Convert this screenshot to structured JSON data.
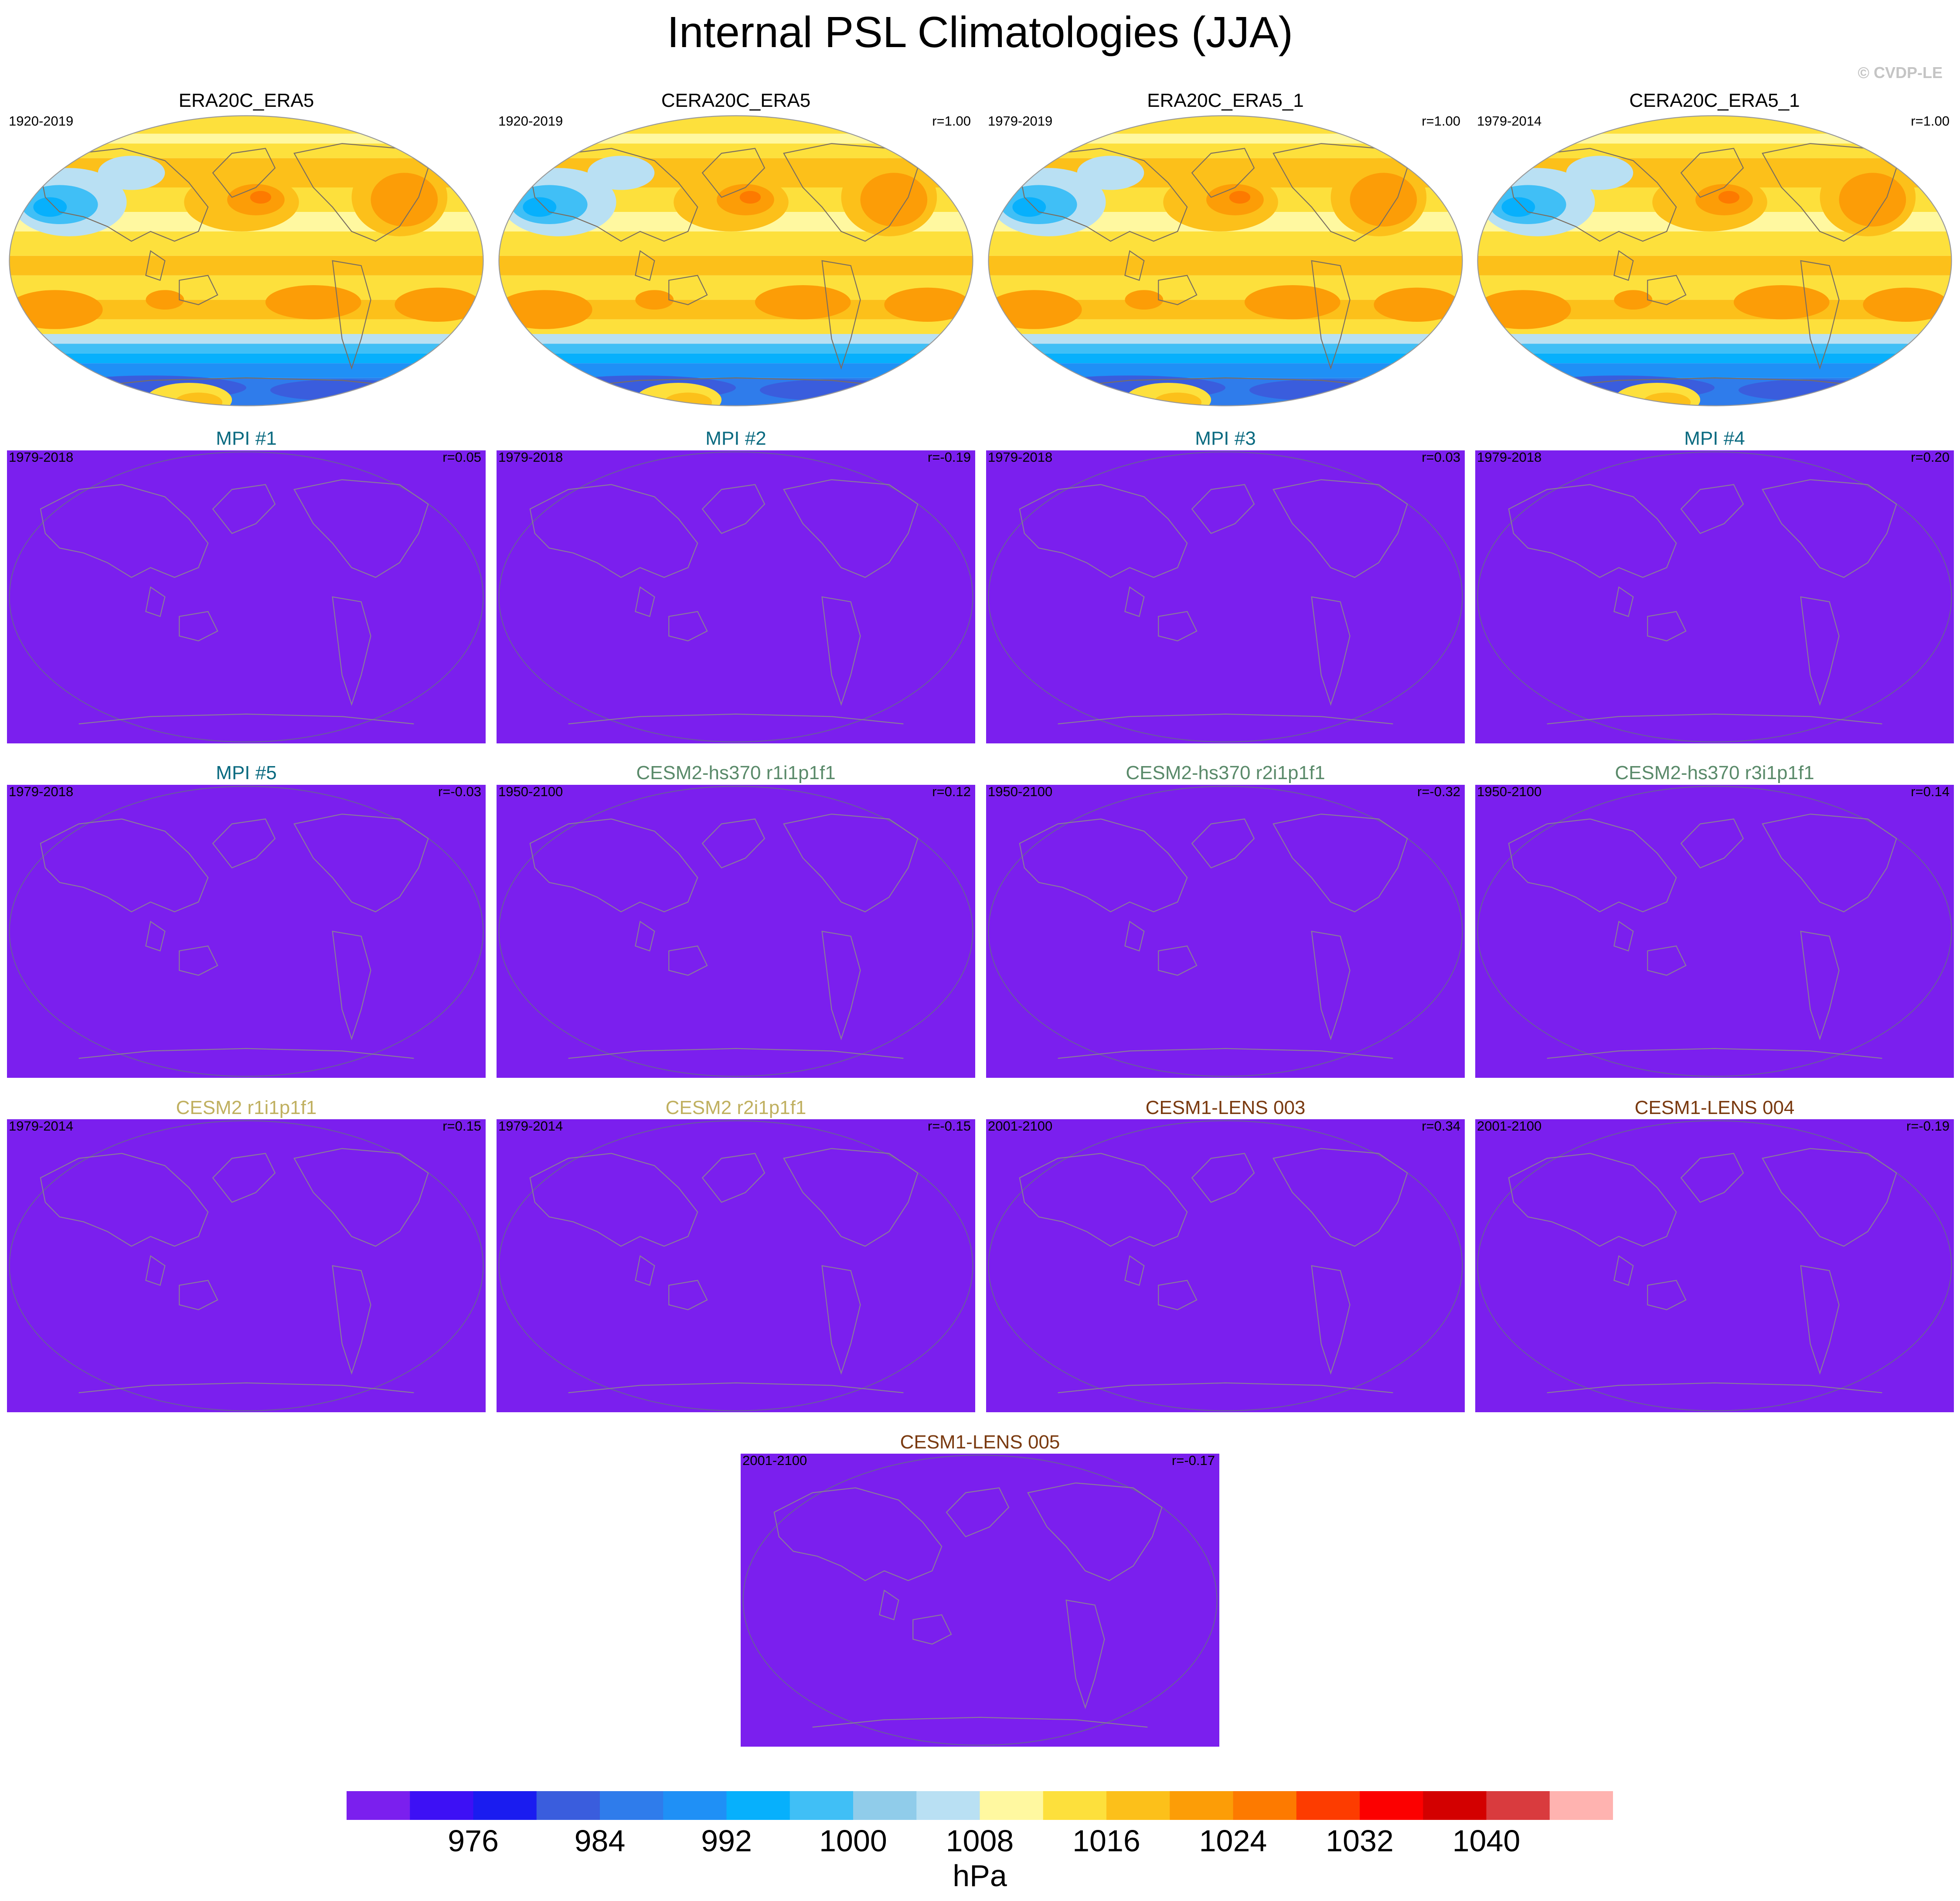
{
  "figure": {
    "title": "Internal PSL Climatologies (JJA)",
    "copyright": "© CVDP-LE"
  },
  "colors": {
    "obs_title": "#000000",
    "mpi_title": "#0a6a80",
    "cesm2_hs370_title": "#5a8a6a",
    "cesm2_title": "#c0b060",
    "cesm1_lens_title": "#7a3a10",
    "model_fill": "#7b1fee",
    "coast": "#8a7a9a"
  },
  "colorbar": {
    "colors": [
      "#7b1fee",
      "#3d10f5",
      "#1a1cf0",
      "#3a5ddd",
      "#2f7ceb",
      "#1f90f6",
      "#07b0fc",
      "#40bff6",
      "#90ccea",
      "#b9e0f3",
      "#fff8a0",
      "#fde03c",
      "#fcc01a",
      "#fc9d07",
      "#fd7a00",
      "#fd3c00",
      "#fc0000",
      "#d30000",
      "#d93b3e",
      "#ffb3b0"
    ],
    "tick_labels": [
      "976",
      "984",
      "992",
      "1000",
      "1008",
      "1016",
      "1024",
      "1032",
      "1040"
    ],
    "unit": "hPa"
  },
  "panels": [
    {
      "title": "ERA20C_ERA5",
      "color_key": "obs_title",
      "period": "1920-2019",
      "r": "",
      "kind": "obs"
    },
    {
      "title": "CERA20C_ERA5",
      "color_key": "obs_title",
      "period": "1920-2019",
      "r": "r=1.00",
      "kind": "obs"
    },
    {
      "title": "ERA20C_ERA5_1",
      "color_key": "obs_title",
      "period": "1979-2019",
      "r": "r=1.00",
      "kind": "obs"
    },
    {
      "title": "CERA20C_ERA5_1",
      "color_key": "obs_title",
      "period": "1979-2014",
      "r": "r=1.00",
      "kind": "obs"
    },
    {
      "title": "MPI #1",
      "color_key": "mpi_title",
      "period": "1979-2018",
      "r": "r=0.05",
      "kind": "model"
    },
    {
      "title": "MPI #2",
      "color_key": "mpi_title",
      "period": "1979-2018",
      "r": "r=-0.19",
      "kind": "model"
    },
    {
      "title": "MPI #3",
      "color_key": "mpi_title",
      "period": "1979-2018",
      "r": "r=0.03",
      "kind": "model"
    },
    {
      "title": "MPI #4",
      "color_key": "mpi_title",
      "period": "1979-2018",
      "r": "r=0.20",
      "kind": "model"
    },
    {
      "title": "MPI #5",
      "color_key": "mpi_title",
      "period": "1979-2018",
      "r": "r=-0.03",
      "kind": "model"
    },
    {
      "title": "CESM2-hs370 r1i1p1f1",
      "color_key": "cesm2_hs370_title",
      "period": "1950-2100",
      "r": "r=0.12",
      "kind": "model"
    },
    {
      "title": "CESM2-hs370 r2i1p1f1",
      "color_key": "cesm2_hs370_title",
      "period": "1950-2100",
      "r": "r=-0.32",
      "kind": "model"
    },
    {
      "title": "CESM2-hs370 r3i1p1f1",
      "color_key": "cesm2_hs370_title",
      "period": "1950-2100",
      "r": "r=0.14",
      "kind": "model"
    },
    {
      "title": "CESM2 r1i1p1f1",
      "color_key": "cesm2_title",
      "period": "1979-2014",
      "r": "r=0.15",
      "kind": "model"
    },
    {
      "title": "CESM2 r2i1p1f1",
      "color_key": "cesm2_title",
      "period": "1979-2014",
      "r": "r=-0.15",
      "kind": "model"
    },
    {
      "title": "CESM1-LENS 003",
      "color_key": "cesm1_lens_title",
      "period": "2001-2100",
      "r": "r=0.34",
      "kind": "model"
    },
    {
      "title": "CESM1-LENS 004",
      "color_key": "cesm1_lens_title",
      "period": "2001-2100",
      "r": "r=-0.19",
      "kind": "model"
    },
    {
      "title": "CESM1-LENS 005",
      "color_key": "cesm1_lens_title",
      "period": "2001-2100",
      "r": "r=-0.17",
      "kind": "model"
    }
  ],
  "chart_data": {
    "type": "heatmap",
    "title": "Internal PSL Climatologies (JJA)",
    "variable": "PSL",
    "season": "JJA",
    "colorbar_unit": "hPa",
    "colorbar_levels": [
      972,
      976,
      980,
      984,
      988,
      992,
      996,
      1000,
      1004,
      1008,
      1012,
      1016,
      1020,
      1024,
      1028,
      1032,
      1036,
      1040,
      1044
    ],
    "panels": [
      {
        "name": "ERA20C_ERA5",
        "period": "1920-2019",
        "r": null
      },
      {
        "name": "CERA20C_ERA5",
        "period": "1920-2019",
        "r": 1.0
      },
      {
        "name": "ERA20C_ERA5_1",
        "period": "1979-2019",
        "r": 1.0
      },
      {
        "name": "CERA20C_ERA5_1",
        "period": "1979-2014",
        "r": 1.0
      },
      {
        "name": "MPI #1",
        "period": "1979-2018",
        "r": 0.05
      },
      {
        "name": "MPI #2",
        "period": "1979-2018",
        "r": -0.19
      },
      {
        "name": "MPI #3",
        "period": "1979-2018",
        "r": 0.03
      },
      {
        "name": "MPI #4",
        "period": "1979-2018",
        "r": 0.2
      },
      {
        "name": "MPI #5",
        "period": "1979-2018",
        "r": -0.03
      },
      {
        "name": "CESM2-hs370 r1i1p1f1",
        "period": "1950-2100",
        "r": 0.12
      },
      {
        "name": "CESM2-hs370 r2i1p1f1",
        "period": "1950-2100",
        "r": -0.32
      },
      {
        "name": "CESM2-hs370 r3i1p1f1",
        "period": "1950-2100",
        "r": 0.14
      },
      {
        "name": "CESM2 r1i1p1f1",
        "period": "1979-2014",
        "r": 0.15
      },
      {
        "name": "CESM2 r2i1p1f1",
        "period": "1979-2014",
        "r": -0.15
      },
      {
        "name": "CESM1-LENS 003",
        "period": "2001-2100",
        "r": 0.34
      },
      {
        "name": "CESM1-LENS 004",
        "period": "2001-2100",
        "r": -0.19
      },
      {
        "name": "CESM1-LENS 005",
        "period": "2001-2100",
        "r": -0.17
      }
    ]
  }
}
